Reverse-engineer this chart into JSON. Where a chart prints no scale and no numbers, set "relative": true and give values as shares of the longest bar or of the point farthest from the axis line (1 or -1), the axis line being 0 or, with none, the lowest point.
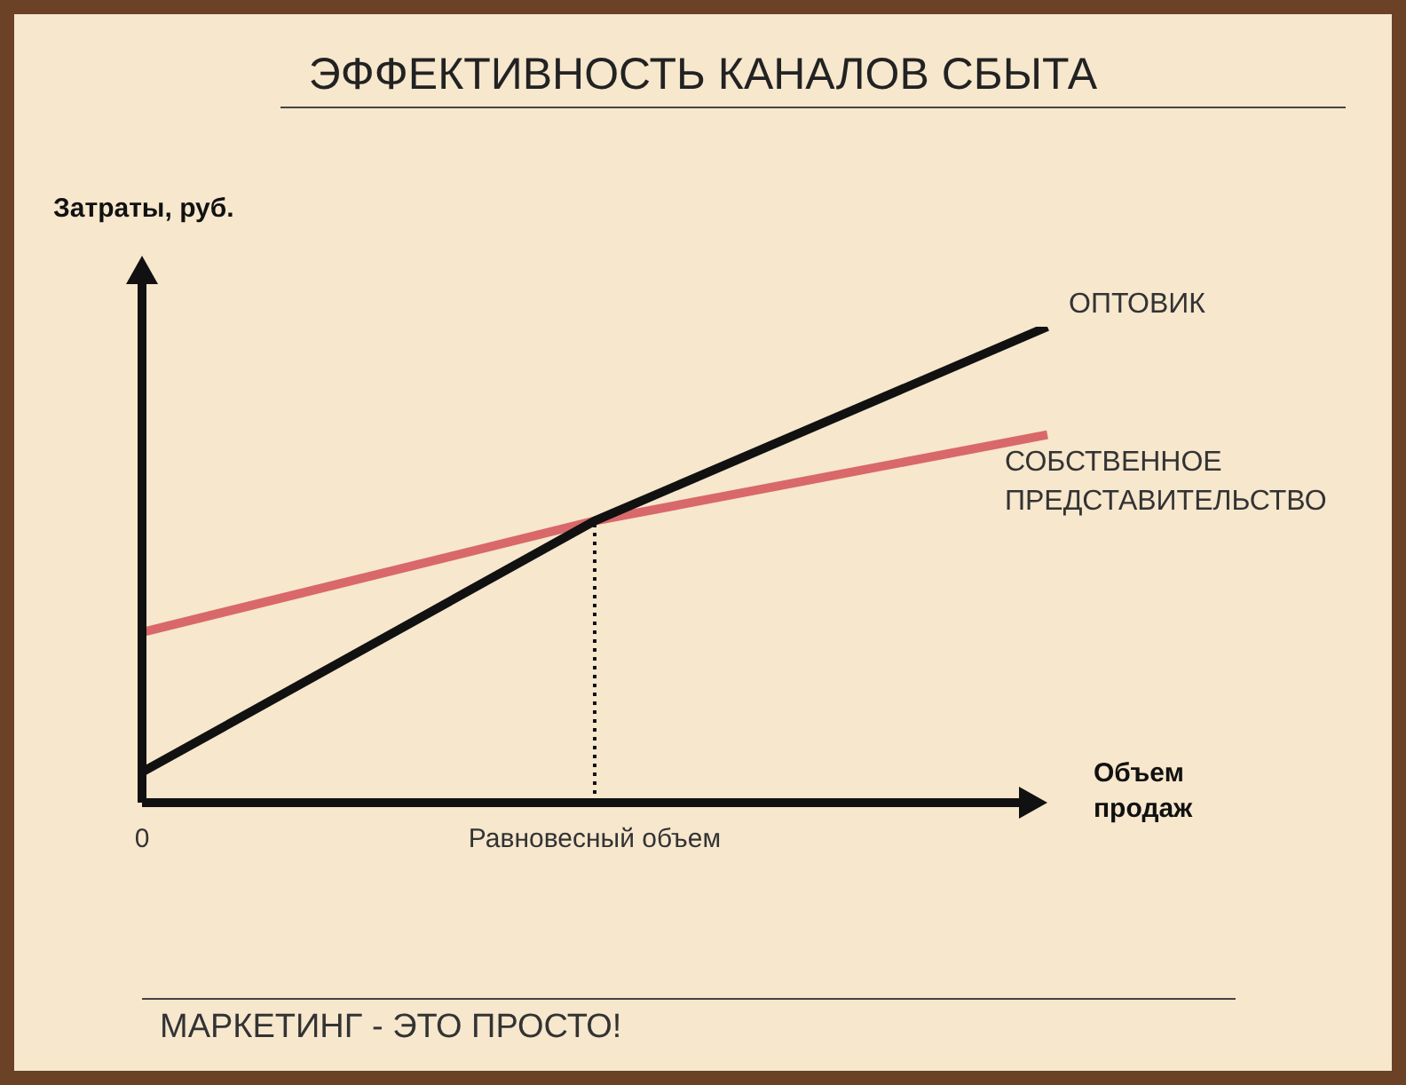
{
  "chart_data": {
    "type": "line",
    "title": "ЭФФЕКТИВНОСТЬ КАНАЛОВ СБЫТА",
    "xlabel": "Объем продаж",
    "ylabel": "Затраты, руб.",
    "relative": true,
    "categories": [
      "0",
      "Равновесный объем",
      null
    ],
    "series": [
      {
        "name": "ОПТОВИК",
        "color": "#111111",
        "values": [
          0.064,
          0.592,
          1
        ]
      },
      {
        "name": "СОБСТВЕННОЕ ПРЕДСТАВИТЕЛЬСТВО",
        "color": "#d9686a",
        "values": [
          0.358,
          0.592,
          0.773
        ]
      }
    ],
    "ref_lines": [
      {
        "axis": "x",
        "value": "Равновесный объем",
        "line_style": "dotted",
        "color": "#111111"
      }
    ],
    "annotations": [
      "МАРКЕТИНГ - ЭТО ПРОСТО!"
    ],
    "legend": false,
    "grid": false,
    "marker": "none",
    "line_style": "solid"
  }
}
